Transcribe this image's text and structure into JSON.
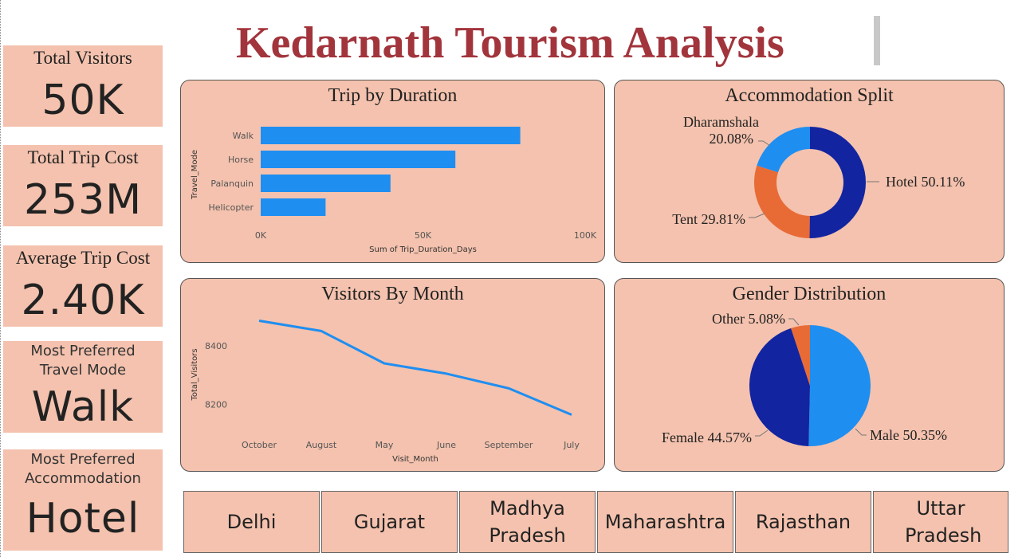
{
  "title": "Kedarnath Tourism Analysis",
  "kpis": {
    "total_visitors": {
      "label": "Total Visitors",
      "value": "50K"
    },
    "total_trip_cost": {
      "label": "Total Trip Cost",
      "value": "253M"
    },
    "average_trip_cost": {
      "label": "Average Trip Cost",
      "value": "2.40K"
    },
    "preferred_travel_mode": {
      "label_line1": "Most Preferred",
      "label_line2": "Travel Mode",
      "value": "Walk"
    },
    "preferred_accommodation": {
      "label_line1": "Most Preferred",
      "label_line2": "Accommodation",
      "value": "Hotel"
    }
  },
  "slicer": {
    "states": [
      "Delhi",
      "Gujarat",
      "Madhya Pradesh",
      "Maharashtra",
      "Rajasthan",
      "Uttar Pradesh"
    ]
  },
  "colors": {
    "panel_bg": "#f4c2ae",
    "title": "#a2343c",
    "bar": "#1f8ef1",
    "line": "#1f8ef1",
    "dark_blue": "#1224a0",
    "orange": "#e86b36",
    "light_blue": "#1f8ef1"
  },
  "chart_data": [
    {
      "type": "bar",
      "orientation": "horizontal",
      "title": "Trip by Duration",
      "categories": [
        "Walk",
        "Horse",
        "Palanquin",
        "Helicopter"
      ],
      "values": [
        80000,
        60000,
        40000,
        20000
      ],
      "xlabel": "Sum of Trip_Duration_Days",
      "ylabel": "Travel_Mode",
      "xlim": [
        0,
        100000
      ],
      "xticks": [
        "0K",
        "50K",
        "100K"
      ],
      "grid": false
    },
    {
      "type": "pie",
      "donut": true,
      "title": "Accommodation Split",
      "slices": [
        {
          "name": "Hotel",
          "value": 50.11,
          "label": "Hotel 50.11%"
        },
        {
          "name": "Tent",
          "value": 29.81,
          "label": "Tent 29.81%"
        },
        {
          "name": "Dharamshala",
          "value": 20.08,
          "label_line1": "Dharamshala",
          "label_line2": "20.08%"
        }
      ]
    },
    {
      "type": "line",
      "title": "Visitors By Month",
      "categories": [
        "October",
        "August",
        "May",
        "June",
        "September",
        "July"
      ],
      "values": [
        8485,
        8450,
        8340,
        8305,
        8255,
        8165
      ],
      "xlabel": "Visit_Month",
      "ylabel": "Total_Visitors",
      "yticks": [
        8200,
        8400
      ],
      "ylim": [
        8150,
        8500
      ],
      "grid": false
    },
    {
      "type": "pie",
      "title": "Gender Distribution",
      "slices": [
        {
          "name": "Male",
          "value": 50.35,
          "label": "Male 50.35%"
        },
        {
          "name": "Female",
          "value": 44.57,
          "label": "Female 44.57%"
        },
        {
          "name": "Other",
          "value": 5.08,
          "label": "Other 5.08%"
        }
      ]
    }
  ]
}
